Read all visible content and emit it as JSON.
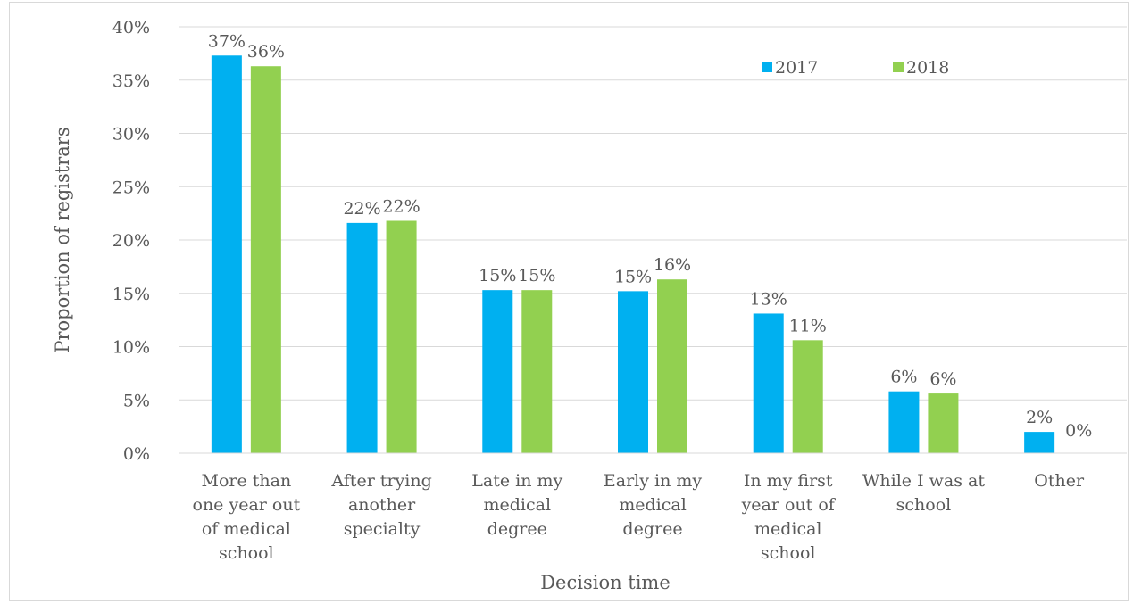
{
  "chart_data": {
    "type": "bar",
    "title": "",
    "xlabel": "Decision time",
    "ylabel": "Proportion of registrars",
    "ylim": [
      0,
      0.4
    ],
    "yticks": [
      "0%",
      "5%",
      "10%",
      "15%",
      "20%",
      "25%",
      "30%",
      "35%",
      "40%"
    ],
    "categories": [
      [
        "More than",
        "one year out",
        "of medical",
        "school"
      ],
      [
        "After trying",
        "another",
        "specialty"
      ],
      [
        "Late in my",
        "medical",
        "degree"
      ],
      [
        "Early in my",
        "medical",
        "degree"
      ],
      [
        "In my first",
        "year out of",
        "medical",
        "school"
      ],
      [
        "While I was at",
        "school"
      ],
      [
        "Other"
      ]
    ],
    "series": [
      {
        "name": "2017",
        "color": "#00b0f0",
        "values": [
          0.373,
          0.216,
          0.153,
          0.152,
          0.131,
          0.058,
          0.02
        ],
        "labels": [
          "37%",
          "22%",
          "15%",
          "15%",
          "13%",
          "6%",
          "2%"
        ]
      },
      {
        "name": "2018",
        "color": "#92d050",
        "values": [
          0.363,
          0.218,
          0.153,
          0.163,
          0.106,
          0.056,
          0.0
        ],
        "labels": [
          "36%",
          "22%",
          "15%",
          "16%",
          "11%",
          "6%",
          "0%"
        ]
      }
    ],
    "grid": true,
    "legend": "top-right"
  }
}
